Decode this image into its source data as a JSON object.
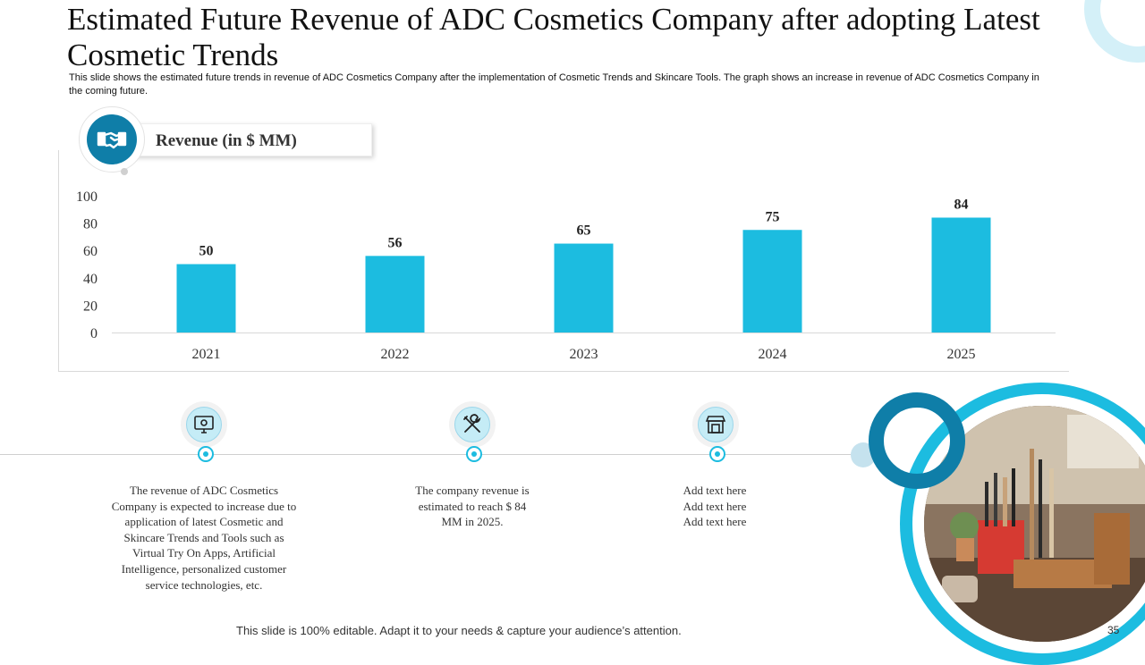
{
  "slide": {
    "title": "Estimated Future Revenue of ADC Cosmetics Company after adopting Latest Cosmetic Trends",
    "subtitle": "This slide shows the estimated future trends in revenue of ADC Cosmetics Company after the implementation  of Cosmetic Trends and Skincare Tools. The graph shows an increase in revenue of ADC Cosmetics Company in the coming future.",
    "footer": "This slide is 100% editable. Adapt it to your needs & capture your audience’s attention.",
    "page_number": "35"
  },
  "chart_header": {
    "label": "Revenue (in  $ MM)",
    "icon": "handshake-icon"
  },
  "chart_data": {
    "type": "bar",
    "title": "Revenue (in  $ MM)",
    "categories": [
      "2021",
      "2022",
      "2023",
      "2024",
      "2025"
    ],
    "values": [
      50,
      56,
      65,
      75,
      84
    ],
    "ylim": [
      0,
      100
    ],
    "yticks": [
      0,
      20,
      40,
      60,
      80,
      100
    ],
    "data_labels": true,
    "grid": false,
    "bar_color": "#1cbce0"
  },
  "timeline": [
    {
      "icon": "computer-monitor-icon",
      "text_lines": [
        "The revenue of ADC Cosmetics",
        "Company is expected to increase due to",
        "application  of latest Cosmetic and",
        "Skincare Trends and Tools such as",
        "Virtual Try On Apps, Artificial",
        "Intelligence, personalized customer",
        "service technologies, etc."
      ]
    },
    {
      "icon": "tools-icon",
      "text_lines": [
        "The company revenue is",
        "estimated to reach $ 84",
        "MM in 2025."
      ]
    },
    {
      "icon": "shop-icon",
      "text_lines": [
        "Add text here",
        "Add text here",
        "Add text here"
      ]
    }
  ],
  "colors": {
    "accent": "#1cbce0",
    "dark_accent": "#0f7ea8"
  }
}
